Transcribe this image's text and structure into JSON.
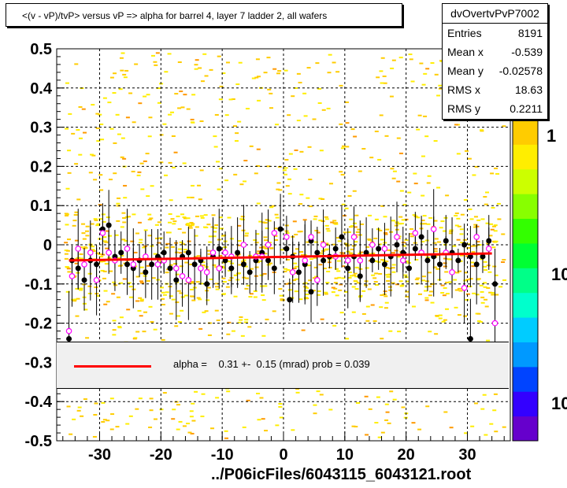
{
  "title": "<(v - vP)/tvP> versus   vP => alpha for barrel 4, layer 7 ladder 2, all wafers",
  "stats": {
    "name": "dvOvertvPvP7002",
    "rows": [
      {
        "key": "Entries",
        "value": "8191"
      },
      {
        "key": "Mean x",
        "value": "-0.539"
      },
      {
        "key": "Mean y",
        "value": "-0.02578"
      },
      {
        "key": "RMS x",
        "value": "18.63"
      },
      {
        "key": "RMS y",
        "value": "0.2211"
      }
    ]
  },
  "legend": {
    "text": "alpha =    0.31 +-  0.15 (mrad) prob = 0.039",
    "line_color": "#ff0000"
  },
  "footer": "../P06icFiles/6043115_6043121.root",
  "palette": {
    "labels": [
      "1",
      "10",
      "10"
    ],
    "colors": [
      "#6600cc",
      "#3300ff",
      "#0044ff",
      "#0099ff",
      "#00ccff",
      "#00ffcc",
      "#00ff88",
      "#00ff33",
      "#33ff00",
      "#88ff00",
      "#ccff00",
      "#ffee00",
      "#ffcc00"
    ]
  },
  "chart_data": {
    "type": "scatter",
    "title": "<(v - vP)/tvP> versus   vP => alpha for barrel 4, layer 7 ladder 2, all wafers",
    "xlabel": "",
    "ylabel": "",
    "xlim": [
      -37,
      37
    ],
    "ylim": [
      -0.5,
      0.5
    ],
    "xticks": [
      -30,
      -20,
      -10,
      0,
      10,
      20,
      30
    ],
    "yticks": [
      -0.5,
      -0.4,
      -0.3,
      -0.2,
      -0.1,
      0,
      0.1,
      0.2,
      0.3,
      0.4,
      0.5
    ],
    "ytick_labels": [
      "-0.5",
      "-0.4",
      "-0.3",
      "-0.2",
      "-0.1",
      "0",
      "0.1",
      "0.2",
      "0.3",
      "0.4",
      "0.5"
    ],
    "grid": true,
    "fit_line": {
      "x": [
        -35,
        34
      ],
      "y": [
        -0.04,
        -0.022
      ],
      "color": "#ff0000"
    },
    "series": [
      {
        "marker": "filled-circle",
        "color": "#000000",
        "points": [
          [
            -34.5,
            -0.04
          ],
          [
            -33.5,
            -0.06
          ],
          [
            -32.5,
            -0.09
          ],
          [
            -31.5,
            -0.04
          ],
          [
            -30.5,
            -0.05
          ],
          [
            -29.5,
            0.04
          ],
          [
            -28.5,
            0.05
          ],
          [
            -27.5,
            -0.03
          ],
          [
            -26.5,
            -0.02
          ],
          [
            -25.5,
            -0.05
          ],
          [
            -24.5,
            -0.06
          ],
          [
            -23.5,
            -0.04
          ],
          [
            -22.5,
            -0.07
          ],
          [
            -21.5,
            -0.05
          ],
          [
            -20.5,
            -0.03
          ],
          [
            -19.5,
            -0.02
          ],
          [
            -18.5,
            -0.06
          ],
          [
            -17.5,
            -0.09
          ],
          [
            -16.5,
            -0.03
          ],
          [
            -15.5,
            -0.02
          ],
          [
            -14.5,
            -0.05
          ],
          [
            -13.5,
            -0.04
          ],
          [
            -12.5,
            -0.1
          ],
          [
            -11.5,
            -0.03
          ],
          [
            -10.5,
            -0.01
          ],
          [
            -9.5,
            -0.04
          ],
          [
            -8.5,
            -0.06
          ],
          [
            -7.5,
            -0.02
          ],
          [
            -6.5,
            -0.05
          ],
          [
            -5.5,
            -0.07
          ],
          [
            -4.5,
            -0.04
          ],
          [
            -3.5,
            -0.02
          ],
          [
            -2.5,
            -0.04
          ],
          [
            -1.5,
            -0.06
          ],
          [
            -0.5,
            0.04
          ],
          [
            0.5,
            -0.01
          ],
          [
            1.5,
            -0.03
          ],
          [
            2.5,
            -0.07
          ],
          [
            3.5,
            -0.05
          ],
          [
            4.5,
            0.01
          ],
          [
            5.5,
            -0.02
          ],
          [
            6.5,
            -0.04
          ],
          [
            7.5,
            -0.03
          ],
          [
            8.5,
            -0.01
          ],
          [
            9.5,
            0.02
          ],
          [
            10.5,
            -0.06
          ],
          [
            11.5,
            -0.03
          ],
          [
            12.5,
            -0.08
          ],
          [
            13.5,
            -0.02
          ],
          [
            14.5,
            -0.04
          ],
          [
            15.5,
            -0.01
          ],
          [
            16.5,
            -0.05
          ],
          [
            17.5,
            -0.03
          ],
          [
            18.5,
            0.0
          ],
          [
            19.5,
            -0.02
          ],
          [
            20.5,
            -0.06
          ],
          [
            21.5,
            -0.01
          ],
          [
            22.5,
            0.02
          ],
          [
            23.5,
            -0.04
          ],
          [
            24.5,
            -0.03
          ],
          [
            25.5,
            -0.05
          ],
          [
            26.5,
            0.01
          ],
          [
            27.5,
            -0.02
          ],
          [
            28.5,
            -0.04
          ],
          [
            29.5,
            0.0
          ],
          [
            30.5,
            -0.03
          ],
          [
            31.5,
            -0.05
          ],
          [
            32.5,
            -0.03
          ],
          [
            33.5,
            0.01
          ],
          [
            34.5,
            -0.1
          ],
          [
            -35,
            -0.24
          ],
          [
            1,
            -0.14
          ],
          [
            4.5,
            -0.12
          ],
          [
            30.5,
            -0.24
          ]
        ]
      },
      {
        "marker": "open-circle",
        "color": "#ff00ff",
        "points": [
          [
            -34.5,
            -0.08
          ],
          [
            -33.5,
            -0.01
          ],
          [
            -32.5,
            -0.05
          ],
          [
            -31.5,
            -0.02
          ],
          [
            -30.5,
            -0.09
          ],
          [
            -29.5,
            0.03
          ],
          [
            -28.5,
            -0.02
          ],
          [
            -27.5,
            -0.04
          ],
          [
            -25.5,
            -0.01
          ],
          [
            -24.5,
            -0.05
          ],
          [
            -22.5,
            -0.03
          ],
          [
            -20.5,
            -0.05
          ],
          [
            -19.5,
            -0.04
          ],
          [
            -17.5,
            -0.06
          ],
          [
            -16.5,
            -0.08
          ],
          [
            -15.5,
            -0.09
          ],
          [
            -13.5,
            -0.06
          ],
          [
            -12.5,
            -0.07
          ],
          [
            -11.5,
            -0.02
          ],
          [
            -10.5,
            -0.06
          ],
          [
            -9.5,
            -0.02
          ],
          [
            -8.5,
            -0.03
          ],
          [
            -6.5,
            0.0
          ],
          [
            -4.5,
            -0.03
          ],
          [
            -3.5,
            -0.03
          ],
          [
            -2.5,
            0.0
          ],
          [
            -1.5,
            0.03
          ],
          [
            0.5,
            0.02
          ],
          [
            1.5,
            -0.07
          ],
          [
            3.5,
            -0.04
          ],
          [
            4.5,
            0.02
          ],
          [
            5.5,
            -0.09
          ],
          [
            6.5,
            0.0
          ],
          [
            8.5,
            -0.03
          ],
          [
            10.5,
            -0.04
          ],
          [
            11.5,
            0.02
          ],
          [
            12.5,
            -0.04
          ],
          [
            14.5,
            0.0
          ],
          [
            16.5,
            -0.01
          ],
          [
            18.5,
            0.02
          ],
          [
            19.5,
            -0.04
          ],
          [
            21.5,
            0.03
          ],
          [
            22.5,
            -0.02
          ],
          [
            24.5,
            0.04
          ],
          [
            26.5,
            -0.02
          ],
          [
            27.5,
            -0.07
          ],
          [
            29.5,
            -0.11
          ],
          [
            31.5,
            0.02
          ],
          [
            33.5,
            -0.01
          ],
          [
            34.5,
            -0.2
          ],
          [
            -35,
            -0.22
          ]
        ]
      }
    ]
  }
}
